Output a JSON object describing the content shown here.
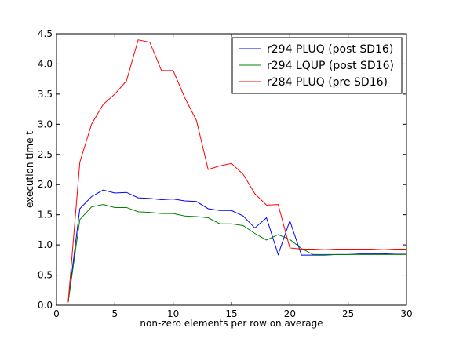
{
  "chart_data": {
    "type": "line",
    "xlabel": "non-zero elements per row on average",
    "ylabel": "execution time t",
    "xlim": [
      0,
      30
    ],
    "ylim": [
      0,
      4.5
    ],
    "xticks": [
      0,
      5,
      10,
      15,
      20,
      25,
      30
    ],
    "yticks": [
      0.0,
      0.5,
      1.0,
      1.5,
      2.0,
      2.5,
      3.0,
      3.5,
      4.0,
      4.5
    ],
    "x_tick_labels": [
      "0",
      "5",
      "10",
      "15",
      "20",
      "25",
      "30"
    ],
    "y_tick_labels": [
      "0.0",
      "0.5",
      "1.0",
      "1.5",
      "2.0",
      "2.5",
      "3.0",
      "3.5",
      "4.0",
      "4.5"
    ],
    "grid": false,
    "legend_position": "top-right",
    "x": [
      1,
      2,
      3,
      4,
      5,
      6,
      7,
      8,
      9,
      10,
      11,
      12,
      13,
      14,
      15,
      16,
      17,
      18,
      19,
      20,
      21,
      22,
      23,
      24,
      25,
      26,
      27,
      28,
      29,
      30
    ],
    "series": [
      {
        "name": "r294 PLUQ (post SD16)",
        "color": "#0000ff",
        "values": [
          0.05,
          1.6,
          1.8,
          1.91,
          1.86,
          1.87,
          1.78,
          1.77,
          1.75,
          1.76,
          1.73,
          1.72,
          1.6,
          1.57,
          1.57,
          1.48,
          1.28,
          1.45,
          0.84,
          1.4,
          0.83,
          0.83,
          0.83,
          0.84,
          0.84,
          0.85,
          0.85,
          0.85,
          0.86,
          0.86
        ]
      },
      {
        "name": "r294 LQUP (post SD16)",
        "color": "#008000",
        "values": [
          0.05,
          1.42,
          1.63,
          1.67,
          1.62,
          1.62,
          1.55,
          1.54,
          1.52,
          1.52,
          1.48,
          1.47,
          1.45,
          1.35,
          1.35,
          1.32,
          1.19,
          1.08,
          1.17,
          1.09,
          0.94,
          0.84,
          0.84,
          0.84,
          0.84,
          0.84,
          0.84,
          0.84,
          0.84,
          0.84
        ]
      },
      {
        "name": "r284 PLUQ (pre SD16)",
        "color": "#ff0000",
        "values": [
          0.05,
          2.37,
          3.0,
          3.33,
          3.5,
          3.72,
          4.4,
          4.36,
          3.89,
          3.89,
          3.44,
          3.06,
          2.25,
          2.31,
          2.35,
          2.17,
          1.85,
          1.66,
          1.67,
          0.95,
          0.93,
          0.93,
          0.92,
          0.93,
          0.93,
          0.93,
          0.93,
          0.92,
          0.93,
          0.93
        ]
      }
    ]
  }
}
